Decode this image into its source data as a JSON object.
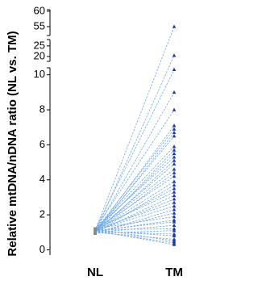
{
  "chart_data": {
    "type": "paired-line",
    "y_label": "Relative mtDNA/nDNA ratio (NL vs. TM)",
    "categories": [
      "NL",
      "TM"
    ],
    "line_color": "#6fa8e8",
    "nl_marker_color": "#8a8a8a",
    "tm_marker_color": "#1f3c9c",
    "y_segments": [
      {
        "ylim": [
          -0.3,
          10.4
        ],
        "yticks": [
          0,
          2,
          4,
          6,
          8,
          10
        ]
      },
      {
        "ylim": [
          17.7,
          28
        ],
        "yticks": [
          20,
          25
        ]
      },
      {
        "ylim": [
          52.1,
          60.5
        ],
        "yticks": [
          55,
          60
        ]
      }
    ],
    "series": [
      {
        "values": [
          1.1,
          55
        ]
      },
      {
        "values": [
          1.0,
          20.5
        ]
      },
      {
        "values": [
          1.15,
          10.3
        ]
      },
      {
        "values": [
          1.05,
          9.0
        ]
      },
      {
        "values": [
          1.2,
          8.0
        ]
      },
      {
        "values": [
          1.0,
          7.1
        ]
      },
      {
        "values": [
          1.1,
          6.9
        ]
      },
      {
        "values": [
          0.95,
          6.7
        ]
      },
      {
        "values": [
          1.05,
          6.5
        ]
      },
      {
        "values": [
          1.15,
          5.9
        ]
      },
      {
        "values": [
          1.0,
          5.7
        ]
      },
      {
        "values": [
          1.1,
          5.5
        ]
      },
      {
        "values": [
          1.2,
          5.3
        ]
      },
      {
        "values": [
          0.95,
          5.1
        ]
      },
      {
        "values": [
          1.05,
          4.9
        ]
      },
      {
        "values": [
          1.1,
          4.6
        ]
      },
      {
        "values": [
          1.0,
          4.4
        ]
      },
      {
        "values": [
          1.15,
          4.2
        ]
      },
      {
        "values": [
          1.05,
          3.9
        ]
      },
      {
        "values": [
          0.95,
          3.7
        ]
      },
      {
        "values": [
          1.1,
          3.5
        ]
      },
      {
        "values": [
          1.2,
          3.3
        ]
      },
      {
        "values": [
          1.0,
          3.1
        ]
      },
      {
        "values": [
          1.05,
          2.9
        ]
      },
      {
        "values": [
          1.15,
          2.7
        ]
      },
      {
        "values": [
          1.1,
          2.5
        ]
      },
      {
        "values": [
          0.95,
          2.3
        ]
      },
      {
        "values": [
          1.0,
          2.1
        ]
      },
      {
        "values": [
          1.2,
          1.9
        ]
      },
      {
        "values": [
          1.05,
          1.7
        ]
      },
      {
        "values": [
          1.1,
          1.6
        ]
      },
      {
        "values": [
          1.0,
          1.4
        ]
      },
      {
        "values": [
          1.15,
          1.2
        ]
      },
      {
        "values": [
          0.95,
          1.1
        ]
      },
      {
        "values": [
          1.05,
          0.9
        ]
      },
      {
        "values": [
          1.1,
          0.8
        ]
      },
      {
        "values": [
          1.0,
          0.6
        ]
      },
      {
        "values": [
          1.2,
          0.5
        ]
      },
      {
        "values": [
          1.05,
          0.4
        ]
      },
      {
        "values": [
          1.1,
          0.3
        ]
      }
    ]
  }
}
